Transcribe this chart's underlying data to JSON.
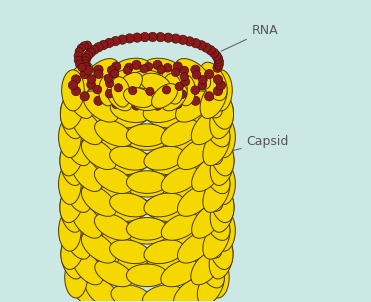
{
  "background_color": "#cce8e4",
  "capsid_color": "#f5d800",
  "capsid_edge_color": "#4a3800",
  "rna_color": "#8B1A1A",
  "rna_edge_color": "#4a0a0a",
  "label_color": "#555555",
  "label_rna": "RNA",
  "label_capsid": "Capsid",
  "figsize": [
    3.71,
    3.02
  ],
  "dpi": 100
}
